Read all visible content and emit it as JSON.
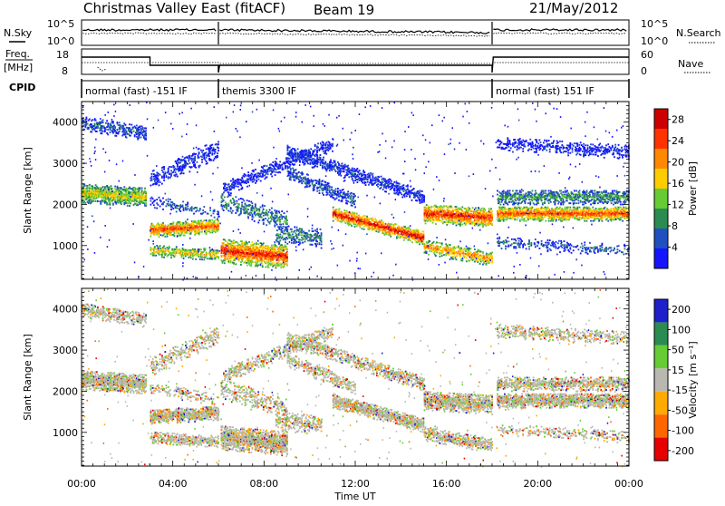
{
  "header": {
    "site": "Christmas Valley East (fitACF)",
    "beam": "Beam 19",
    "date": "21/May/2012"
  },
  "panels": {
    "nsky_label": "N.Sky",
    "nsearch_label": "N.Search",
    "freq_label_1": "Freq.",
    "freq_label_2": "[MHz]",
    "nave_label": "Nave",
    "cpid_label": "CPID",
    "nsky_ticks": [
      "10^5",
      "10^0"
    ],
    "nsearch_ticks": [
      "10^5",
      "10^0"
    ],
    "freq_ticks": [
      "18",
      "8"
    ],
    "nave_ticks": [
      "60",
      "0"
    ]
  },
  "cpid_segments": [
    {
      "start": 0.0,
      "end": 6.0,
      "label": "normal (fast) -151 IF"
    },
    {
      "start": 6.0,
      "end": 18.0,
      "label": "themis 3300 IF"
    },
    {
      "start": 18.0,
      "end": 24.0,
      "label": "normal (fast) 151 IF"
    }
  ],
  "chart_data": [
    {
      "type": "heatmap",
      "quantity": "Power",
      "ylabel": "Slant Range [km]",
      "ylim": [
        180,
        4500
      ],
      "yticks": [
        "1000",
        "2000",
        "3000",
        "4000"
      ],
      "xlim": [
        0,
        24
      ],
      "colorbar_label": "Power [dB]",
      "colorbar_ticks": [
        "4",
        "8",
        "12",
        "16",
        "20",
        "24",
        "28"
      ],
      "colorbar_range": [
        0,
        30
      ],
      "colors": [
        "#1414ff",
        "#2050c0",
        "#2a8c50",
        "#66cc33",
        "#ffcc00",
        "#ff8800",
        "#ff3300",
        "#cc0000"
      ]
    },
    {
      "type": "heatmap",
      "quantity": "Velocity",
      "ylabel": "Slant Range [km]",
      "ylim": [
        180,
        4500
      ],
      "yticks": [
        "1000",
        "2000",
        "3000",
        "4000"
      ],
      "xlim": [
        0,
        24
      ],
      "xlabel": "Time UT",
      "xticks": [
        "00:00",
        "04:00",
        "08:00",
        "12:00",
        "16:00",
        "20:00",
        "00:00"
      ],
      "colorbar_label": "Velocity [m s⁻¹]",
      "colorbar_ticks": [
        "200",
        "100",
        "50",
        "15",
        "-15",
        "-50",
        "-100",
        "-200"
      ],
      "colors": [
        "#1f1fcc",
        "#2a8c50",
        "#66cc33",
        "#b8b8b0",
        "#ffaa00",
        "#ff6600",
        "#e60000"
      ]
    }
  ]
}
